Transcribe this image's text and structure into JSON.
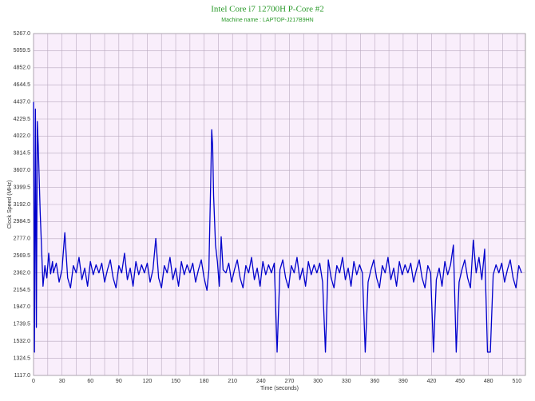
{
  "chart_data": {
    "type": "line",
    "title": "Intel Core i7 12700H P-Core #2",
    "subtitle": "Machine name : LAPTOP-J217B9HN",
    "x_label": "Time (seconds)",
    "y_label": "Clock Speed (MHz)",
    "xlim": [
      0,
      519
    ],
    "ylim": [
      1117,
      5267
    ],
    "xticks": [
      0,
      30,
      60,
      90,
      120,
      150,
      180,
      210,
      240,
      270,
      300,
      330,
      360,
      390,
      420,
      450,
      480,
      510
    ],
    "x_minor_ticks": [
      15,
      45,
      75,
      105,
      135,
      165,
      195,
      225,
      255,
      285,
      315,
      345,
      375,
      405,
      435,
      465,
      495
    ],
    "yticks": [
      {
        "value": 1117,
        "label": "1117.0"
      },
      {
        "value": 1324.5,
        "label": "1324.5"
      },
      {
        "value": 1532,
        "label": "1532.0"
      },
      {
        "value": 1739.5,
        "label": "1739.5"
      },
      {
        "value": 1947,
        "label": "1947.0"
      },
      {
        "value": 2154.5,
        "label": "2154.5"
      },
      {
        "value": 2362,
        "label": "2362.0"
      },
      {
        "value": 2569.5,
        "label": "2569.5"
      },
      {
        "value": 2777,
        "label": "2777.0"
      },
      {
        "value": 2984.5,
        "label": "2984.5"
      },
      {
        "value": 3192,
        "label": "3192.0"
      },
      {
        "value": 3399.5,
        "label": "3399.5"
      },
      {
        "value": 3607,
        "label": "3607.0"
      },
      {
        "value": 3814.5,
        "label": "3814.5"
      },
      {
        "value": 4022,
        "label": "4022.0"
      },
      {
        "value": 4229.5,
        "label": "4229.5"
      },
      {
        "value": 4437,
        "label": "4437.0"
      },
      {
        "value": 4644.5,
        "label": "4644.5"
      },
      {
        "value": 4852,
        "label": "4852.0"
      },
      {
        "value": 5059.5,
        "label": "5059.5"
      },
      {
        "value": 5267,
        "label": "5267.0"
      }
    ],
    "grid": true,
    "x": [
      0,
      1,
      2,
      3,
      4,
      5,
      6,
      7,
      8,
      9,
      10,
      12,
      14,
      16,
      18,
      20,
      21,
      24,
      27,
      30,
      33,
      36,
      39,
      42,
      45,
      48,
      51,
      54,
      57,
      60,
      63,
      66,
      69,
      72,
      75,
      78,
      81,
      84,
      87,
      90,
      93,
      96,
      99,
      102,
      105,
      108,
      111,
      114,
      117,
      120,
      123,
      126,
      129,
      132,
      135,
      138,
      141,
      144,
      147,
      150,
      153,
      156,
      159,
      162,
      165,
      168,
      171,
      174,
      177,
      180,
      183,
      185,
      187,
      188,
      189,
      190,
      192,
      194,
      196,
      198,
      200,
      203,
      206,
      209,
      212,
      215,
      218,
      221,
      224,
      227,
      230,
      233,
      236,
      239,
      242,
      245,
      248,
      251,
      254,
      257,
      260,
      263,
      266,
      269,
      272,
      275,
      278,
      281,
      284,
      287,
      290,
      293,
      296,
      299,
      302,
      305,
      308,
      311,
      314,
      317,
      320,
      323,
      326,
      329,
      332,
      335,
      338,
      341,
      344,
      347,
      350,
      353,
      356,
      359,
      362,
      365,
      368,
      371,
      374,
      377,
      380,
      383,
      386,
      389,
      392,
      395,
      398,
      401,
      404,
      407,
      410,
      413,
      416,
      419,
      422,
      425,
      428,
      431,
      434,
      437,
      440,
      443,
      446,
      449,
      452,
      455,
      458,
      461,
      464,
      467,
      470,
      473,
      476,
      479,
      482,
      485,
      488,
      491,
      494,
      497,
      500,
      503,
      506,
      509,
      512,
      515
    ],
    "series": [
      {
        "name": "Clock Speed",
        "color": "#0000cc",
        "values": [
          4437,
          1400,
          4350,
          1700,
          4200,
          3900,
          3500,
          3100,
          2800,
          2500,
          2200,
          2450,
          2300,
          2600,
          2350,
          2500,
          2362,
          2480,
          2250,
          2400,
          2850,
          2300,
          2180,
          2450,
          2362,
          2550,
          2280,
          2420,
          2200,
          2500,
          2340,
          2460,
          2362,
          2480,
          2250,
          2400,
          2520,
          2300,
          2180,
          2450,
          2362,
          2600,
          2280,
          2420,
          2200,
          2500,
          2340,
          2460,
          2362,
          2480,
          2250,
          2400,
          2780,
          2300,
          2180,
          2450,
          2362,
          2550,
          2280,
          2420,
          2200,
          2500,
          2340,
          2460,
          2362,
          2480,
          2250,
          2400,
          2520,
          2300,
          2150,
          2400,
          3500,
          4100,
          3900,
          3300,
          2700,
          2500,
          2200,
          2800,
          2400,
          2362,
          2480,
          2250,
          2400,
          2520,
          2300,
          2180,
          2450,
          2362,
          2550,
          2280,
          2420,
          2200,
          2500,
          2340,
          2460,
          2362,
          2480,
          1400,
          2400,
          2520,
          2300,
          2180,
          2450,
          2362,
          2550,
          2280,
          2420,
          2200,
          2500,
          2340,
          2460,
          2362,
          2480,
          2250,
          1400,
          2520,
          2300,
          2180,
          2450,
          2362,
          2550,
          2280,
          2420,
          2200,
          2500,
          2340,
          2460,
          2362,
          1400,
          2250,
          2400,
          2520,
          2300,
          2180,
          2450,
          2362,
          2550,
          2280,
          2420,
          2200,
          2500,
          2340,
          2460,
          2362,
          2480,
          2250,
          2400,
          2520,
          2300,
          2180,
          2450,
          2362,
          1400,
          2280,
          2420,
          2200,
          2500,
          2340,
          2460,
          2700,
          1400,
          2250,
          2400,
          2520,
          2300,
          2180,
          2760,
          2362,
          2550,
          2280,
          2650,
          1400,
          1400,
          2340,
          2460,
          2362,
          2480,
          2250,
          2400,
          2520,
          2300,
          2180,
          2450,
          2362
        ]
      }
    ]
  }
}
